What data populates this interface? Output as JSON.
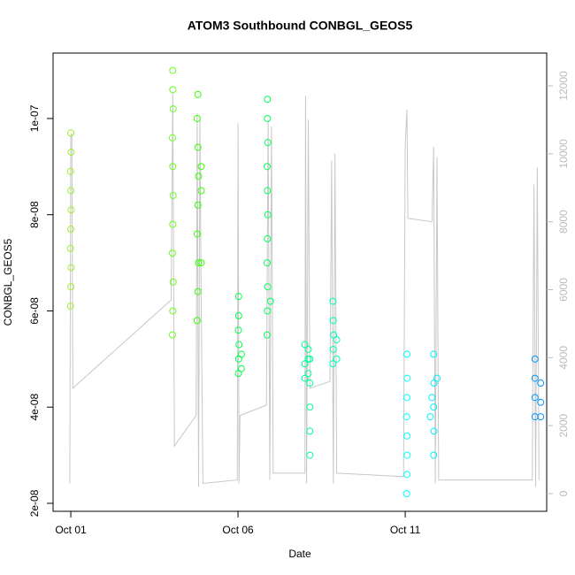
{
  "chart_data": {
    "type": "scatter",
    "title": "ATOM3 Southbound CONBGL_GEOS5",
    "x_label": "Date",
    "y_label": "CONBGL_GEOS5",
    "xlim": [
      0.47,
      15.23
    ],
    "xticks": [
      {
        "value": 1,
        "label": "Oct 01"
      },
      {
        "value": 6,
        "label": "Oct 06"
      },
      {
        "value": 11,
        "label": "Oct 11"
      }
    ],
    "ylim": [
      1.834e-08,
      1.136e-07
    ],
    "yticks": [
      {
        "value": 2e-08,
        "label": "2e-08"
      },
      {
        "value": 4e-08,
        "label": "4e-08"
      },
      {
        "value": 6e-08,
        "label": "6e-08"
      },
      {
        "value": 8e-08,
        "label": "8e-08"
      },
      {
        "value": 1e-07,
        "label": "1e-07"
      }
    ],
    "y2lim": [
      -521,
      12963
    ],
    "y2ticks": [
      0,
      2000,
      4000,
      6000,
      8000,
      10000,
      12000
    ],
    "y2_color": "#bbbbbb",
    "series": [
      {
        "type": "line",
        "axis": "y2",
        "color": "#c8c8c8",
        "x": [
          0.97,
          1.0,
          1.03,
          1.06,
          4.0,
          4.05,
          4.1,
          4.75,
          4.78,
          4.82,
          4.86,
          4.9,
          4.95,
          5.98,
          6.0,
          6.03,
          6.06,
          6.85,
          6.9,
          6.95,
          7.0,
          7.05,
          8.0,
          8.02,
          8.05,
          8.1,
          8.15,
          8.75,
          8.8,
          8.85,
          8.9,
          8.95,
          10.95,
          11.0,
          11.05,
          11.08,
          11.8,
          11.85,
          11.9,
          11.95,
          12.0,
          14.8,
          14.85,
          14.9,
          14.95,
          15.0
        ],
        "values": [
          300,
          10500,
          10600,
          3100,
          5700,
          11800,
          1400,
          2300,
          11200,
          200,
          11000,
          5500,
          300,
          400,
          10900,
          300,
          2300,
          2600,
          11000,
          400,
          10800,
          600,
          600,
          11700,
          300,
          11000,
          3100,
          3300,
          9800,
          300,
          10000,
          600,
          500,
          10300,
          11300,
          8100,
          8000,
          10200,
          300,
          9900,
          400,
          400,
          9100,
          200,
          9600,
          400
        ]
      },
      {
        "color": "#a0f02a",
        "x": [
          0.99,
          1.0,
          1.01,
          0.99,
          1.0,
          1.01,
          1.0,
          0.99,
          1.01,
          1.0
        ],
        "values": [
          6.1e-08,
          6.5e-08,
          6.9e-08,
          7.3e-08,
          7.7e-08,
          8.1e-08,
          8.5e-08,
          8.9e-08,
          9.3e-08,
          9.7e-08
        ]
      },
      {
        "color": "#66ff1a",
        "x": [
          4.04,
          4.05,
          4.06,
          4.04,
          4.05,
          4.06,
          4.05,
          4.04,
          4.06,
          4.05,
          4.05
        ],
        "values": [
          5.5e-08,
          6e-08,
          6.6e-08,
          7.2e-08,
          7.8e-08,
          8.4e-08,
          9e-08,
          9.6e-08,
          1.02e-07,
          1.06e-07,
          1.1e-07
        ]
      },
      {
        "color": "#33ff00",
        "x": [
          4.78,
          4.8,
          4.82,
          4.78,
          4.8,
          4.82,
          4.8,
          4.78,
          4.8,
          4.9,
          4.9,
          4.9
        ],
        "values": [
          5.8e-08,
          6.4e-08,
          7e-08,
          7.6e-08,
          8.2e-08,
          8.8e-08,
          9.4e-08,
          1e-07,
          1.05e-07,
          7e-08,
          8.5e-08,
          9e-08
        ]
      },
      {
        "color": "#00ff4c",
        "x": [
          6.01,
          6.02,
          6.03,
          6.01,
          6.02,
          6.02,
          6.1,
          6.1
        ],
        "values": [
          4.7e-08,
          5e-08,
          5.3e-08,
          5.6e-08,
          5.9e-08,
          6.3e-08,
          4.8e-08,
          5.1e-08
        ]
      },
      {
        "color": "#00ff5a",
        "x": [
          6.87,
          6.88,
          6.89,
          6.87,
          6.88,
          6.89,
          6.88,
          6.87,
          6.89,
          6.88,
          6.88,
          6.97
        ],
        "values": [
          5.5e-08,
          6e-08,
          6.5e-08,
          7e-08,
          7.5e-08,
          8e-08,
          8.5e-08,
          9e-08,
          9.5e-08,
          1e-07,
          1.04e-07,
          6.2e-08
        ]
      },
      {
        "color": "#00ff99",
        "x": [
          8.0,
          8.0,
          8.0,
          8.1,
          8.1,
          8.1,
          8.15,
          8.15,
          8.15,
          8.15,
          8.15
        ],
        "values": [
          4.6e-08,
          4.9e-08,
          5.3e-08,
          4.7e-08,
          5e-08,
          5.2e-08,
          3e-08,
          3.5e-08,
          4e-08,
          4.5e-08,
          5e-08
        ]
      },
      {
        "color": "#00ffb3",
        "x": [
          8.84,
          8.85,
          8.86,
          8.85,
          8.84,
          8.95,
          8.95
        ],
        "values": [
          4.9e-08,
          5.2e-08,
          5.5e-08,
          5.8e-08,
          6.2e-08,
          5e-08,
          5.4e-08
        ]
      },
      {
        "color": "#00ffff",
        "x": [
          11.04,
          11.05,
          11.06,
          11.05,
          11.04,
          11.05,
          11.06,
          11.05
        ],
        "values": [
          2.2e-08,
          2.6e-08,
          3e-08,
          3.4e-08,
          3.8e-08,
          4.2e-08,
          4.6e-08,
          5.1e-08
        ]
      },
      {
        "color": "#00f0ff",
        "x": [
          11.85,
          11.86,
          11.85,
          11.86,
          11.85,
          11.75,
          11.8,
          11.95
        ],
        "values": [
          3e-08,
          3.5e-08,
          4e-08,
          4.5e-08,
          5.1e-08,
          3.8e-08,
          4.2e-08,
          4.6e-08
        ]
      },
      {
        "color": "#0099ff",
        "x": [
          14.88,
          14.88,
          14.88,
          14.88,
          15.05,
          15.05,
          15.05
        ],
        "values": [
          3.8e-08,
          4.2e-08,
          4.6e-08,
          5e-08,
          3.8e-08,
          4.1e-08,
          4.5e-08
        ]
      }
    ]
  }
}
